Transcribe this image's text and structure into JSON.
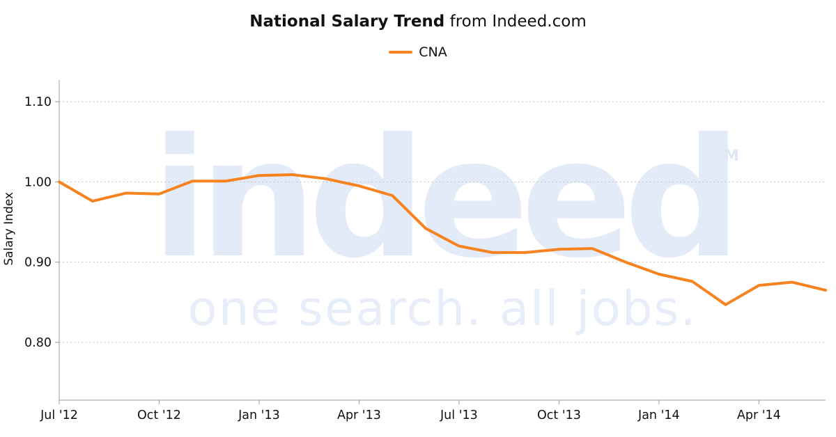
{
  "header": {
    "title_bold": "National Salary Trend",
    "title_rest": " from Indeed.com",
    "legend_label": "CNA"
  },
  "watermark": {
    "main": "indeed",
    "tm": "TM",
    "tagline": "one search. all jobs."
  },
  "chart_data": {
    "type": "line",
    "title": "National Salary Trend from Indeed.com",
    "xlabel": "",
    "ylabel": "Salary Index",
    "legend_position": "top-center",
    "grid": "horizontal dotted",
    "ylim": [
      0.728,
      1.127
    ],
    "yticks": [
      0.8,
      0.9,
      1.0,
      1.1
    ],
    "ytick_labels": [
      "0.80",
      "0.90",
      "1.00",
      "1.10"
    ],
    "x": [
      "Jul 2012",
      "Aug 2012",
      "Sep 2012",
      "Oct 2012",
      "Nov 2012",
      "Dec 2012",
      "Jan 2013",
      "Feb 2013",
      "Mar 2013",
      "Apr 2013",
      "May 2013",
      "Jun 2013",
      "Jul 2013",
      "Aug 2013",
      "Sep 2013",
      "Oct 2013",
      "Nov 2013",
      "Dec 2013",
      "Jan 2014",
      "Feb 2014",
      "Mar 2014",
      "Apr 2014",
      "May 2014",
      "Jun 2014"
    ],
    "xticks": [
      {
        "index": 0,
        "label": "Jul '12"
      },
      {
        "index": 3,
        "label": "Oct '12"
      },
      {
        "index": 6,
        "label": "Jan '13"
      },
      {
        "index": 9,
        "label": "Apr '13"
      },
      {
        "index": 12,
        "label": "Jul '13"
      },
      {
        "index": 15,
        "label": "Oct '13"
      },
      {
        "index": 18,
        "label": "Jan '14"
      },
      {
        "index": 21,
        "label": "Apr '14"
      }
    ],
    "series": [
      {
        "name": "CNA",
        "color": "#f6831f",
        "values": [
          1.0,
          0.976,
          0.986,
          0.985,
          1.001,
          1.001,
          1.008,
          1.009,
          1.004,
          0.995,
          0.983,
          0.942,
          0.92,
          0.912,
          0.912,
          0.916,
          0.917,
          0.9,
          0.885,
          0.876,
          0.847,
          0.871,
          0.875,
          0.865
        ]
      }
    ]
  }
}
